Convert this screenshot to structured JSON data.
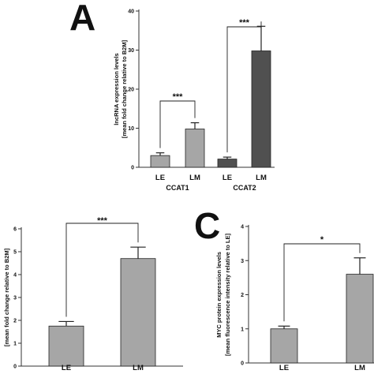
{
  "panels": {
    "A": {
      "letter": "A"
    },
    "B": {
      "letter": ""
    },
    "C": {
      "letter": "C"
    }
  },
  "chart_data": [
    {
      "panel": "A",
      "type": "bar",
      "ylabel": [
        "lncRNA expression levels",
        "[mean fold change relative to B2M]"
      ],
      "ylim": [
        0,
        40
      ],
      "yticks": [
        0,
        10,
        20,
        30,
        40
      ],
      "groups": [
        {
          "name": "CCAT1",
          "categories": [
            "LE",
            "LM"
          ],
          "values": [
            3,
            9.8
          ],
          "errors": [
            0.7,
            1.6
          ],
          "colors": [
            "#a6a6a6",
            "#a6a6a6"
          ]
        },
        {
          "name": "CCAT2",
          "categories": [
            "LE",
            "LM"
          ],
          "values": [
            2.1,
            29.8
          ],
          "errors": [
            0.5,
            6.3
          ],
          "colors": [
            "#505050",
            "#505050"
          ]
        }
      ],
      "significance": [
        {
          "group": "CCAT1",
          "label": "***"
        },
        {
          "group": "CCAT2",
          "label": "***"
        }
      ]
    },
    {
      "panel": "B",
      "type": "bar",
      "ylabel": [
        "[mean fold change relative to B2M]"
      ],
      "ylim": [
        0,
        6
      ],
      "yticks": [
        0,
        1,
        2,
        3,
        4,
        5,
        6
      ],
      "categories": [
        "LE",
        "LM"
      ],
      "values": [
        1.75,
        4.7
      ],
      "errors": [
        0.2,
        0.5
      ],
      "colors": [
        "#a6a6a6",
        "#a6a6a6"
      ],
      "significance": [
        {
          "label": "***"
        }
      ]
    },
    {
      "panel": "C",
      "type": "bar",
      "ylabel": [
        "MYC protein expression levels",
        "[mean fluorescence intensity relative to LE]"
      ],
      "ylim": [
        0,
        4
      ],
      "yticks": [
        0,
        1,
        2,
        3,
        4
      ],
      "categories": [
        "LE",
        "LM"
      ],
      "values": [
        1.0,
        2.6
      ],
      "errors": [
        0.08,
        0.48
      ],
      "colors": [
        "#a6a6a6",
        "#a6a6a6"
      ],
      "significance": [
        {
          "label": "*"
        }
      ]
    }
  ]
}
